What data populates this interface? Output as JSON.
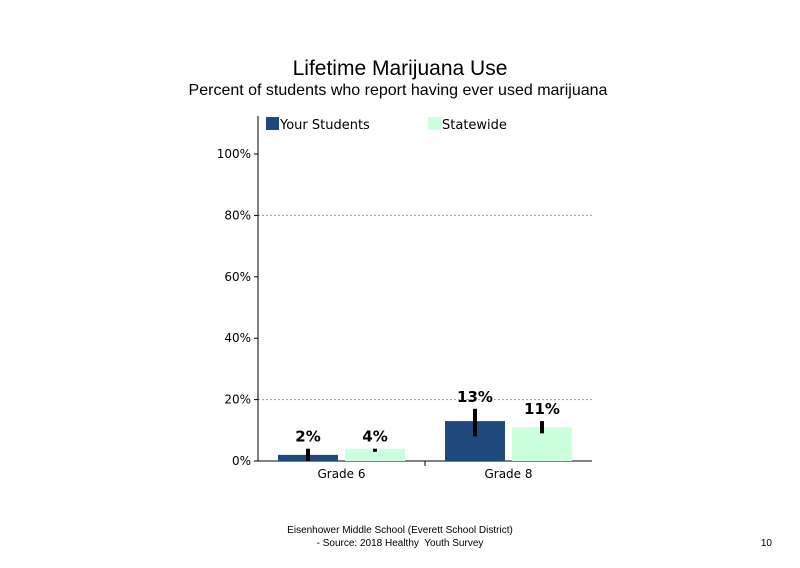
{
  "chart_data": {
    "type": "bar",
    "title": "Lifetime Marijuana  Use",
    "subtitle": "Percent of students who report having ever used marijuana",
    "categories": [
      "Grade 6",
      "Grade 8"
    ],
    "series": [
      {
        "name": "Your Students",
        "color": "#1f497d",
        "values": [
          2,
          13
        ],
        "labels": [
          "2%",
          "13%"
        ],
        "error_low": [
          0,
          8
        ],
        "error_high": [
          4,
          17
        ]
      },
      {
        "name": "Statewide",
        "color": "#ccffdd",
        "values": [
          4,
          11
        ],
        "labels": [
          "4%",
          "11%"
        ],
        "error_low": [
          3,
          9
        ],
        "error_high": [
          4,
          13
        ]
      }
    ],
    "y_ticks": [
      0,
      20,
      40,
      60,
      80,
      100
    ],
    "y_tick_labels": [
      "0%",
      "20%",
      "40%",
      "60%",
      "80%",
      "100%"
    ],
    "ylim": [
      0,
      100
    ],
    "gridlines": [
      20,
      80
    ],
    "legend_position": "top"
  },
  "footer": {
    "line1": "Eisenhower Middle School (Everett School District)",
    "line2": "- Source: 2018 Healthy  Youth Survey"
  },
  "page_number": "10"
}
